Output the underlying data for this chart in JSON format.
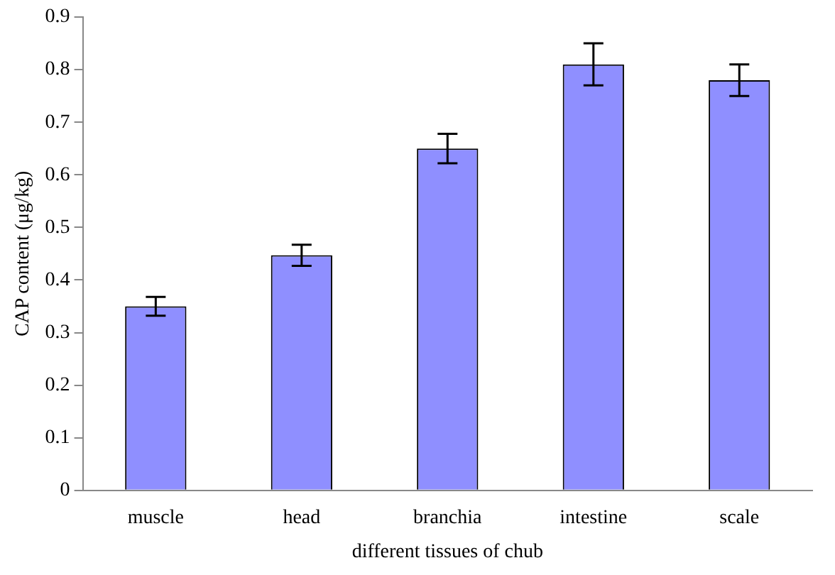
{
  "chart_data": {
    "type": "bar",
    "xlabel": "different tissues of chub",
    "ylabel": "CAP content (μg/kg)",
    "categories": [
      "muscle",
      "head",
      "branchia",
      "intestine",
      "scale"
    ],
    "values": [
      0.35,
      0.447,
      0.65,
      0.81,
      0.78
    ],
    "errors": [
      0.018,
      0.02,
      0.028,
      0.04,
      0.03
    ],
    "color": "#8f8fff",
    "ylim": [
      0,
      0.9
    ],
    "yticks": [
      0,
      0.1,
      0.2,
      0.3,
      0.4,
      0.5,
      0.6,
      0.7,
      0.8,
      0.9
    ],
    "grid": false,
    "legend": false
  }
}
